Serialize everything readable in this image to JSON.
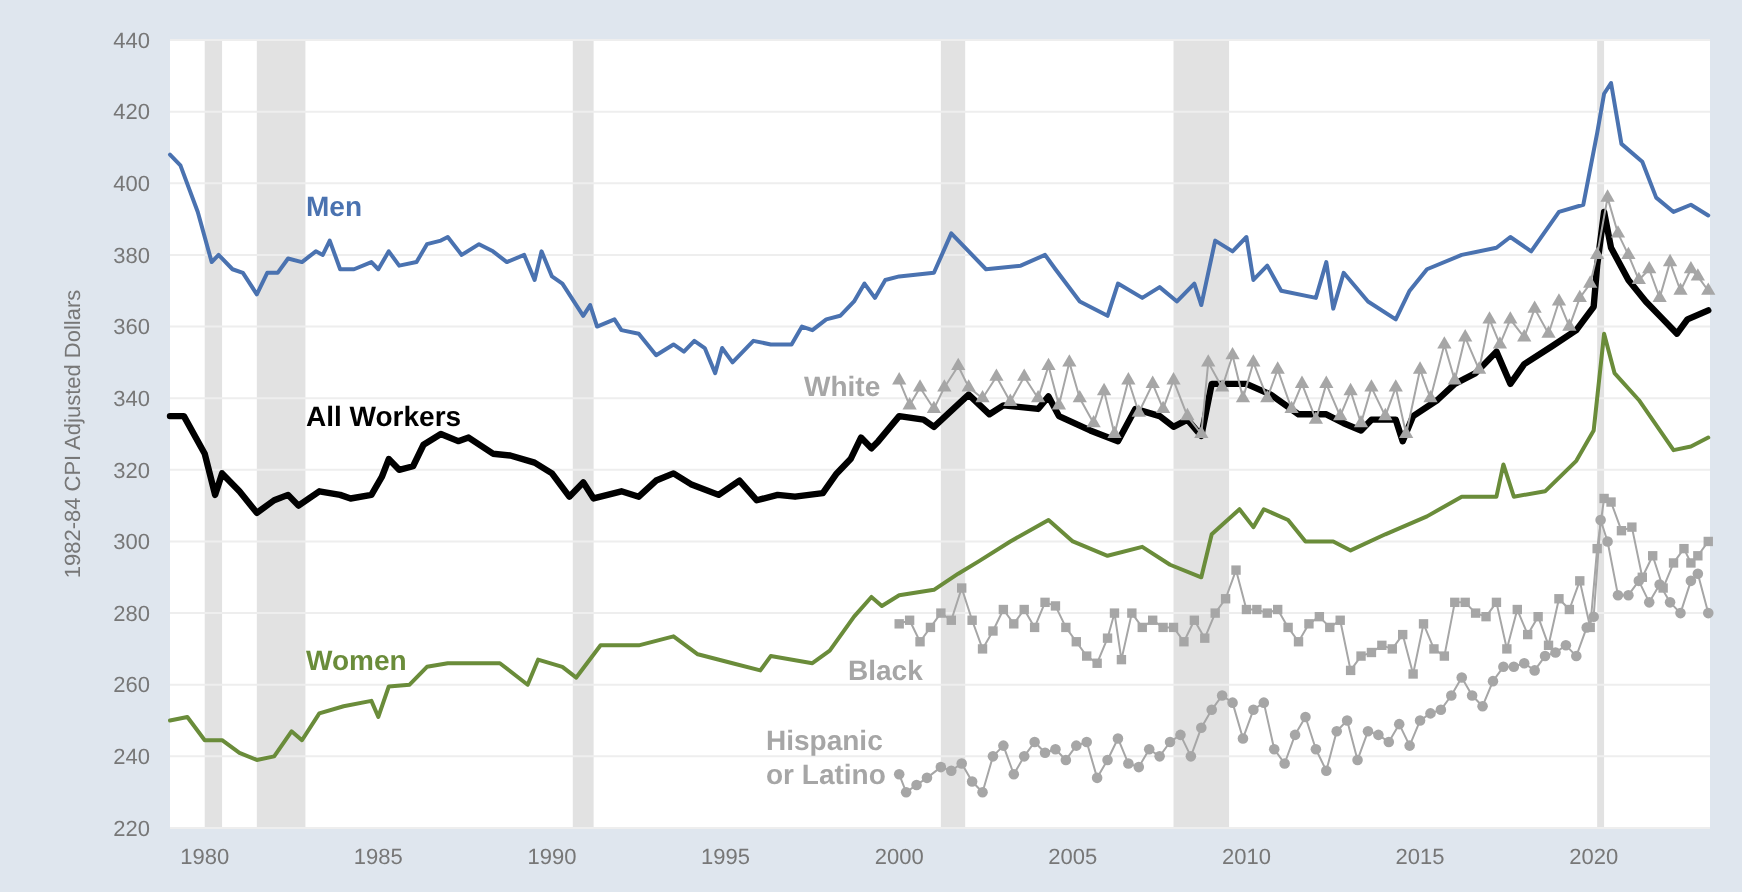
{
  "chart_data": {
    "type": "line",
    "ylabel": "1982-84 CPI Adjusted Dollars",
    "xlim": [
      1979,
      2023.35
    ],
    "xticks": [
      1980,
      1985,
      1990,
      1995,
      2000,
      2005,
      2010,
      2015,
      2020
    ],
    "ylim": [
      220,
      440
    ],
    "yticks": [
      220,
      240,
      260,
      280,
      300,
      320,
      340,
      360,
      380,
      400,
      420,
      440
    ],
    "grid": "y",
    "legend": false,
    "line_style": "solid",
    "bands": [
      {
        "axis": "x",
        "from": 1980.0,
        "to": 1980.5,
        "color": "#e2e2e2"
      },
      {
        "axis": "x",
        "from": 1981.5,
        "to": 1982.9,
        "color": "#e2e2e2"
      },
      {
        "axis": "x",
        "from": 1990.6,
        "to": 1991.2,
        "color": "#e2e2e2"
      },
      {
        "axis": "x",
        "from": 2001.2,
        "to": 2001.9,
        "color": "#e2e2e2"
      },
      {
        "axis": "x",
        "from": 2007.9,
        "to": 2009.5,
        "color": "#e2e2e2"
      },
      {
        "axis": "x",
        "from": 2020.1,
        "to": 2020.3,
        "color": "#e2e2e2"
      }
    ],
    "series": [
      {
        "name": "Men",
        "color": "#4a72b0",
        "marker": "none",
        "x": [
          1979,
          1979.3,
          1979.8,
          1980.2,
          1980.4,
          1980.8,
          1981.1,
          1981.5,
          1981.8,
          1982.1,
          1982.4,
          1982.8,
          1983.2,
          1983.4,
          1983.6,
          1983.9,
          1984.3,
          1984.8,
          1985.0,
          1985.3,
          1985.6,
          1986.1,
          1986.4,
          1986.8,
          1987.0,
          1987.4,
          1987.9,
          1988.3,
          1988.7,
          1989.2,
          1989.5,
          1989.7,
          1990.0,
          1990.3,
          1990.7,
          1990.9,
          1991.1,
          1991.3,
          1991.8,
          1992.0,
          1992.5,
          1993.0,
          1993.5,
          1993.8,
          1994.1,
          1994.4,
          1994.7,
          1994.9,
          1995.2,
          1995.8,
          1996.3,
          1996.9,
          1997.2,
          1997.5,
          1997.9,
          1998.3,
          1998.7,
          1999.0,
          1999.3,
          1999.6,
          2000.0,
          2001.0,
          2001.5,
          2002.5,
          2003.5,
          2004.2,
          2004.5,
          2005.2,
          2006.0,
          2006.3,
          2007.0,
          2007.5,
          2008.0,
          2008.5,
          2008.7,
          2009.1,
          2009.6,
          2010.0,
          2010.2,
          2010.6,
          2011.0,
          2012.0,
          2012.3,
          2012.5,
          2012.8,
          2013.5,
          2014.3,
          2014.7,
          2015.2,
          2016.2,
          2017.2,
          2017.6,
          2018.2,
          2019.0,
          2019.7,
          2020.1,
          2020.3,
          2020.5,
          2020.8,
          2021.4,
          2021.8,
          2022.3,
          2022.8,
          2023.3
        ],
        "values": [
          408,
          405,
          392,
          378,
          380,
          376,
          375,
          369,
          375,
          375,
          379,
          378,
          381,
          380,
          384,
          376,
          376,
          378,
          376,
          381,
          377,
          378,
          383,
          384,
          385,
          380,
          383,
          381,
          378,
          380,
          373,
          381,
          374,
          372,
          366,
          363,
          366,
          360,
          362,
          359,
          358,
          352,
          355,
          353,
          356,
          354,
          347,
          354,
          350,
          356,
          355,
          355,
          360,
          359,
          362,
          363,
          367,
          372,
          368,
          373,
          374,
          375,
          386,
          376,
          377,
          380,
          376,
          367,
          363,
          372,
          368,
          371,
          367,
          372,
          366,
          384,
          381,
          385,
          373,
          377,
          370,
          368,
          378,
          365,
          375,
          367,
          362,
          370,
          376,
          380,
          382,
          385,
          381,
          392,
          394,
          414,
          425,
          428,
          411,
          406,
          396,
          392,
          394,
          391
        ]
      },
      {
        "name": "All Workers",
        "color": "#000000",
        "marker": "none",
        "x": [
          1979,
          1979.4,
          1980.0,
          1980.3,
          1980.5,
          1981.0,
          1981.5,
          1982.0,
          1982.4,
          1982.7,
          1983.3,
          1983.9,
          1984.2,
          1984.8,
          1985.1,
          1985.3,
          1985.6,
          1986.0,
          1986.3,
          1986.8,
          1987.3,
          1987.6,
          1988.3,
          1988.8,
          1989.5,
          1990.0,
          1990.5,
          1990.9,
          1991.2,
          1992.0,
          1992.5,
          1993.0,
          1993.5,
          1994.0,
          1994.8,
          1995.4,
          1995.9,
          1996.5,
          1997.0,
          1997.8,
          1998.2,
          1998.6,
          1998.9,
          1999.2,
          1999.4,
          2000.0,
          2000.7,
          2001.0,
          2002.0,
          2002.6,
          2003.0,
          2004.0,
          2004.3,
          2004.6,
          2005.5,
          2006.3,
          2006.8,
          2007.5,
          2007.9,
          2008.3,
          2008.7,
          2009.0,
          2010.0,
          2010.7,
          2011.5,
          2012.3,
          2012.8,
          2013.3,
          2013.6,
          2014.3,
          2014.5,
          2014.8,
          2015.5,
          2016.0,
          2016.6,
          2017.2,
          2017.6,
          2018.0,
          2018.8,
          2019.5,
          2020.0,
          2020.1,
          2020.3,
          2020.5,
          2021.0,
          2021.5,
          2022.0,
          2022.4,
          2022.7,
          2023.3
        ],
        "values": [
          335,
          335,
          324.5,
          313,
          319,
          314,
          308,
          311.5,
          313,
          310,
          314,
          313,
          312,
          313,
          318,
          323,
          320,
          321,
          327,
          330,
          328,
          329,
          324.5,
          324,
          322,
          319,
          312.5,
          316.5,
          312,
          314,
          312.5,
          317,
          319,
          316,
          313,
          317,
          311.5,
          313,
          312.5,
          313.5,
          319,
          323,
          329,
          326,
          328,
          335,
          334,
          332,
          341,
          335.5,
          338,
          337,
          340.5,
          335,
          331,
          328,
          337,
          335,
          332,
          334,
          329.5,
          344,
          344,
          341,
          335.5,
          335.5,
          333,
          331,
          334,
          334,
          328,
          335,
          339.5,
          344,
          347,
          353,
          344,
          349.5,
          354.5,
          359,
          365.5,
          377,
          392,
          382,
          373,
          367,
          362,
          358,
          362,
          364.5
        ]
      },
      {
        "name": "Women",
        "color": "#6a8c3a",
        "marker": "none",
        "x": [
          1979,
          1979.5,
          1980.0,
          1980.5,
          1981.0,
          1981.5,
          1982.0,
          1982.5,
          1982.8,
          1983.3,
          1984.0,
          1984.8,
          1985.0,
          1985.3,
          1985.9,
          1986.4,
          1987.0,
          1988.5,
          1989.3,
          1989.6,
          1990.3,
          1990.7,
          1991.4,
          1992.5,
          1993.5,
          1994.2,
          1995.2,
          1996.0,
          1996.3,
          1997.5,
          1998.0,
          1998.7,
          1999.2,
          1999.5,
          2000.0,
          2001.0,
          2001.7,
          2002.3,
          2003.2,
          2004.3,
          2005.0,
          2006.0,
          2007.0,
          2007.8,
          2008.7,
          2009.0,
          2009.8,
          2010.2,
          2010.5,
          2011.2,
          2011.7,
          2012.5,
          2013.0,
          2014.0,
          2015.2,
          2016.2,
          2017.2,
          2017.4,
          2017.7,
          2018.6,
          2019.5,
          2020.0,
          2020.3,
          2020.6,
          2021.3,
          2022.3,
          2022.8,
          2023.3
        ],
        "values": [
          250,
          251,
          244.5,
          244.5,
          241,
          239,
          240,
          247,
          244.5,
          252,
          254,
          255.5,
          251,
          259.5,
          260,
          265,
          266,
          266,
          260,
          267,
          265,
          262,
          271,
          271,
          273.5,
          268.5,
          266,
          264,
          268,
          266,
          269.5,
          279,
          284.5,
          282,
          285,
          286.5,
          291,
          294.5,
          300,
          306,
          300,
          296,
          298.5,
          293.5,
          290,
          302,
          309,
          304,
          309,
          306,
          300,
          300,
          297.5,
          302,
          307,
          312.5,
          312.5,
          321.5,
          312.5,
          314,
          322.5,
          331,
          358,
          347,
          339.5,
          325.5,
          326.5,
          329
        ]
      },
      {
        "name": "White",
        "color": "#a6a6a6",
        "marker": "triangle",
        "x": [
          2000.0,
          2000.3,
          2000.6,
          2001.0,
          2001.3,
          2001.7,
          2002.0,
          2002.4,
          2002.8,
          2003.2,
          2003.6,
          2004.0,
          2004.3,
          2004.6,
          2004.9,
          2005.2,
          2005.6,
          2005.9,
          2006.2,
          2006.6,
          2006.9,
          2007.3,
          2007.6,
          2007.9,
          2008.3,
          2008.7,
          2008.9,
          2009.3,
          2009.6,
          2009.9,
          2010.2,
          2010.6,
          2010.9,
          2011.3,
          2011.6,
          2012.0,
          2012.3,
          2012.7,
          2013.0,
          2013.3,
          2013.6,
          2014.0,
          2014.3,
          2014.6,
          2015.0,
          2015.3,
          2015.7,
          2016.0,
          2016.3,
          2016.7,
          2017.0,
          2017.3,
          2017.6,
          2018.0,
          2018.3,
          2018.7,
          2019.0,
          2019.3,
          2019.6,
          2019.9,
          2020.1,
          2020.4,
          2020.7,
          2021.0,
          2021.3,
          2021.6,
          2021.9,
          2022.2,
          2022.5,
          2022.8,
          2023.0,
          2023.3
        ],
        "values": [
          345,
          338,
          343,
          337,
          343,
          349,
          343,
          340,
          346,
          339,
          346,
          340,
          349,
          338,
          350,
          340,
          333,
          342,
          330,
          345,
          336,
          344,
          337,
          345,
          335,
          330,
          350,
          343,
          352,
          340,
          350,
          340,
          348,
          337,
          344,
          334,
          344,
          335,
          342,
          333,
          343,
          335,
          343,
          330,
          348,
          340,
          355,
          345,
          357,
          348,
          362,
          355,
          362,
          357,
          365,
          358,
          367,
          360,
          368,
          372,
          380,
          396,
          386,
          380,
          373,
          376,
          368,
          378,
          370,
          376,
          374,
          370
        ]
      },
      {
        "name": "Black",
        "color": "#a6a6a6",
        "marker": "square",
        "x": [
          2000.0,
          2000.3,
          2000.6,
          2000.9,
          2001.2,
          2001.5,
          2001.8,
          2002.1,
          2002.4,
          2002.7,
          2003.0,
          2003.3,
          2003.6,
          2003.9,
          2004.2,
          2004.5,
          2004.8,
          2005.1,
          2005.4,
          2005.7,
          2006.0,
          2006.2,
          2006.4,
          2006.7,
          2007.0,
          2007.3,
          2007.6,
          2007.9,
          2008.2,
          2008.5,
          2008.8,
          2009.1,
          2009.4,
          2009.7,
          2010.0,
          2010.3,
          2010.6,
          2010.9,
          2011.2,
          2011.5,
          2011.8,
          2012.1,
          2012.4,
          2012.7,
          2013.0,
          2013.3,
          2013.6,
          2013.9,
          2014.2,
          2014.5,
          2014.8,
          2015.1,
          2015.4,
          2015.7,
          2016.0,
          2016.3,
          2016.6,
          2016.9,
          2017.2,
          2017.5,
          2017.8,
          2018.1,
          2018.4,
          2018.7,
          2019.0,
          2019.3,
          2019.6,
          2019.9,
          2020.1,
          2020.3,
          2020.5,
          2020.8,
          2021.1,
          2021.4,
          2021.7,
          2022.0,
          2022.3,
          2022.6,
          2022.8,
          2023.0,
          2023.3
        ],
        "values": [
          277,
          278,
          272,
          276,
          280,
          278,
          287,
          278,
          270,
          275,
          281,
          277,
          281,
          276,
          283,
          282,
          276,
          272,
          268,
          266,
          273,
          280,
          267,
          280,
          276,
          278,
          276,
          276,
          272,
          278,
          273,
          280,
          284,
          292,
          281,
          281,
          280,
          281,
          276,
          272,
          277,
          279,
          276,
          278,
          264,
          268,
          269,
          271,
          270,
          274,
          263,
          277,
          270,
          268,
          283,
          283,
          280,
          279,
          283,
          270,
          281,
          274,
          279,
          271,
          284,
          281,
          289,
          276,
          298,
          312,
          311,
          303,
          304,
          290,
          296,
          287,
          294,
          298,
          294,
          296,
          300
        ]
      },
      {
        "name": "Hispanic or Latino",
        "color": "#a6a6a6",
        "marker": "circle",
        "x": [
          2000.0,
          2000.2,
          2000.5,
          2000.8,
          2001.2,
          2001.5,
          2001.8,
          2002.1,
          2002.4,
          2002.7,
          2003.0,
          2003.3,
          2003.6,
          2003.9,
          2004.2,
          2004.5,
          2004.8,
          2005.1,
          2005.4,
          2005.7,
          2006.0,
          2006.3,
          2006.6,
          2006.9,
          2007.2,
          2007.5,
          2007.8,
          2008.1,
          2008.4,
          2008.7,
          2009.0,
          2009.3,
          2009.6,
          2009.9,
          2010.2,
          2010.5,
          2010.8,
          2011.1,
          2011.4,
          2011.7,
          2012.0,
          2012.3,
          2012.6,
          2012.9,
          2013.2,
          2013.5,
          2013.8,
          2014.1,
          2014.4,
          2014.7,
          2015.0,
          2015.3,
          2015.6,
          2015.9,
          2016.2,
          2016.5,
          2016.8,
          2017.1,
          2017.4,
          2017.7,
          2018.0,
          2018.3,
          2018.6,
          2018.9,
          2019.2,
          2019.5,
          2019.8,
          2020.0,
          2020.2,
          2020.4,
          2020.7,
          2021.0,
          2021.3,
          2021.6,
          2021.9,
          2022.2,
          2022.5,
          2022.8,
          2023.0,
          2023.3
        ],
        "values": [
          235,
          230,
          232,
          234,
          237,
          236,
          238,
          233,
          230,
          240,
          243,
          235,
          240,
          244,
          241,
          242,
          239,
          243,
          244,
          234,
          239,
          245,
          238,
          237,
          242,
          240,
          244,
          246,
          240,
          248,
          253,
          257,
          255,
          245,
          253,
          255,
          242,
          238,
          246,
          251,
          242,
          236,
          247,
          250,
          239,
          247,
          246,
          244,
          249,
          243,
          250,
          252,
          253,
          257,
          262,
          257,
          254,
          261,
          265,
          265,
          266,
          264,
          268,
          269,
          271,
          268,
          276,
          279,
          306,
          300,
          285,
          285,
          289,
          283,
          288,
          283,
          280,
          289,
          291,
          280
        ]
      }
    ]
  }
}
